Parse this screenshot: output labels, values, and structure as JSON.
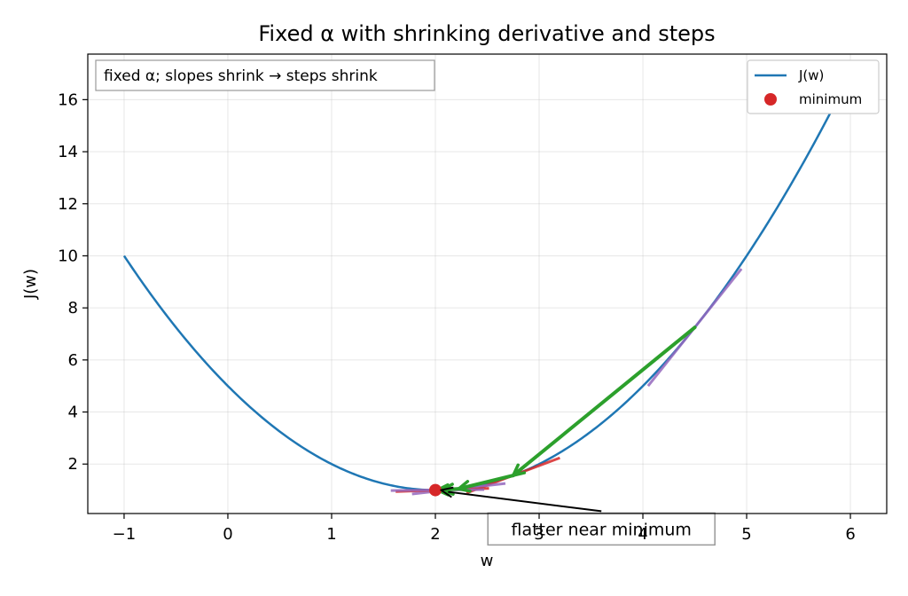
{
  "chart_data": {
    "type": "line",
    "title": "Fixed α with shrinking derivative and steps",
    "xlabel": "w",
    "ylabel": "J(w)",
    "xlim": [
      -1.35,
      6.35
    ],
    "ylim": [
      0.1,
      17.75
    ],
    "xticks": [
      -1,
      0,
      1,
      2,
      3,
      4,
      5,
      6
    ],
    "yticks": [
      2,
      4,
      6,
      8,
      10,
      12,
      14,
      16
    ],
    "xtick_labels": [
      "−1",
      "0",
      "1",
      "2",
      "3",
      "4",
      "5",
      "6"
    ],
    "ytick_labels": [
      "2",
      "4",
      "6",
      "8",
      "10",
      "12",
      "14",
      "16"
    ],
    "grid": true,
    "legend_position": "top-right",
    "series": [
      {
        "name": "J(w)",
        "color": "#1f77b4",
        "function": "(w-2)^2 + 1",
        "x_range": [
          -1,
          6
        ]
      }
    ],
    "minimum": {
      "name": "minimum",
      "x": 2,
      "y": 1,
      "color": "#d62728"
    },
    "steps": {
      "color": "#2ca02c",
      "points": [
        {
          "x": 4.5,
          "y": 7.25
        },
        {
          "x": 2.75,
          "y": 1.5625
        },
        {
          "x": 2.225,
          "y": 1.0506
        },
        {
          "x": 2.0675,
          "y": 1.0046
        },
        {
          "x": 2.0203,
          "y": 1.0004
        }
      ]
    },
    "tangents": {
      "colors": [
        "#9467bd",
        "#d62728"
      ],
      "half_width": 0.45
    },
    "info_box": "fixed α; slopes shrink → steps shrink",
    "annotation": {
      "text": "flatter near minimum",
      "point": {
        "x": 2.02,
        "y": 1.0
      },
      "text_at": {
        "x": 3.6,
        "y": 0.12
      }
    }
  }
}
